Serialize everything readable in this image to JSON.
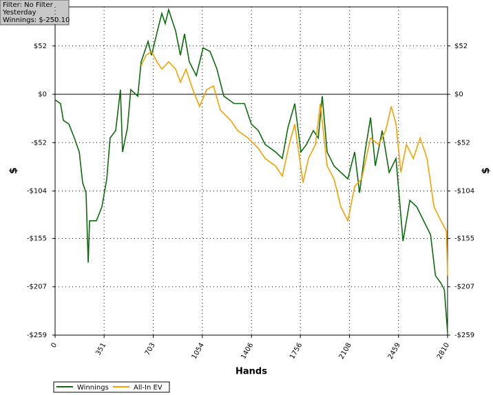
{
  "chart_data": {
    "type": "line",
    "annotations": [
      "Filter: No Filter",
      "Yesterday",
      "Winnings: $-250.10"
    ],
    "xlabel": "Hands",
    "ylabel": "$",
    "xlim": [
      0,
      2810
    ],
    "xticks": [
      0,
      351,
      703,
      1054,
      1406,
      1756,
      2108,
      2459,
      2810
    ],
    "ylim": [
      -259,
      94
    ],
    "yticks": [
      {
        "value": -259,
        "label": "-$259"
      },
      {
        "value": -207,
        "label": "-$207"
      },
      {
        "value": -155,
        "label": "-$155"
      },
      {
        "value": -104,
        "label": "-$104"
      },
      {
        "value": -52,
        "label": "-$52"
      },
      {
        "value": 0,
        "label": "$0"
      },
      {
        "value": 52,
        "label": "$52"
      }
    ],
    "grid": true,
    "series": [
      {
        "name": "Winnings",
        "color": "#0b6b0b",
        "x": [
          0,
          39,
          59,
          99,
          138,
          173,
          197,
          222,
          237,
          247,
          296,
          335,
          370,
          394,
          434,
          468,
          483,
          518,
          542,
          592,
          616,
          666,
          690,
          739,
          764,
          789,
          813,
          863,
          897,
          927,
          961,
          1011,
          1060,
          1110,
          1159,
          1208,
          1282,
          1356,
          1405,
          1455,
          1504,
          1578,
          1627,
          1667,
          1716,
          1760,
          1800,
          1849,
          1884,
          1913,
          1948,
          1997,
          2046,
          2096,
          2145,
          2180,
          2219,
          2259,
          2293,
          2342,
          2392,
          2441,
          2491,
          2540,
          2589,
          2639,
          2688,
          2723,
          2762,
          2787,
          2810
        ],
        "values": [
          -6,
          -10,
          -28,
          -32,
          -47,
          -62,
          -95,
          -106,
          -181,
          -136,
          -136,
          -121,
          -91,
          -47,
          -39,
          5,
          -62,
          -36,
          5,
          -2,
          35,
          57,
          42,
          72,
          87,
          76,
          91,
          68,
          42,
          65,
          35,
          20,
          50,
          46,
          27,
          -2,
          -10,
          -10,
          -32,
          -39,
          -54,
          -62,
          -69,
          -36,
          -10,
          -62,
          -54,
          -39,
          -47,
          -2,
          -62,
          -77,
          -84,
          -91,
          -62,
          -106,
          -62,
          -25,
          -77,
          -39,
          -84,
          -69,
          -158,
          -114,
          -121,
          -136,
          -151,
          -195,
          -203,
          -210,
          -256
        ]
      },
      {
        "name": "All-In EV",
        "color": "#f5a000",
        "x": [
          616,
          651,
          690,
          729,
          764,
          813,
          863,
          897,
          937,
          986,
          1035,
          1085,
          1134,
          1183,
          1257,
          1307,
          1381,
          1455,
          1504,
          1578,
          1627,
          1676,
          1716,
          1775,
          1814,
          1864,
          1899,
          1948,
          1997,
          2046,
          2096,
          2145,
          2195,
          2259,
          2318,
          2367,
          2407,
          2441,
          2476,
          2515,
          2565,
          2614,
          2663,
          2713,
          2762,
          2802,
          2810
        ],
        "values": [
          31,
          42,
          46,
          35,
          27,
          35,
          27,
          13,
          27,
          5,
          -13,
          5,
          9,
          -17,
          -28,
          -39,
          -47,
          -58,
          -69,
          -77,
          -88,
          -54,
          -32,
          -95,
          -69,
          -54,
          -10,
          -77,
          -91,
          -121,
          -136,
          -99,
          -91,
          -47,
          -54,
          -39,
          -13,
          -32,
          -84,
          -54,
          -69,
          -47,
          -69,
          -121,
          -136,
          -147,
          -195
        ]
      }
    ]
  }
}
